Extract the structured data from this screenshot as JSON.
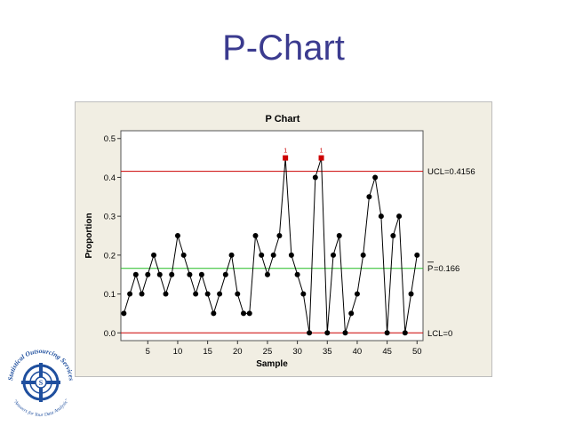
{
  "slide": {
    "title": "P-Chart"
  },
  "chart_data": {
    "type": "line",
    "title": "P Chart",
    "xlabel": "Sample",
    "ylabel": "Proportion",
    "xlim": [
      0.5,
      51
    ],
    "ylim": [
      -0.02,
      0.52
    ],
    "x_ticks": [
      5,
      10,
      15,
      20,
      25,
      30,
      35,
      40,
      45,
      50
    ],
    "y_ticks": [
      0.0,
      0.1,
      0.2,
      0.3,
      0.4,
      0.5
    ],
    "y_tick_labels": [
      "0.0",
      "0.1",
      "0.2",
      "0.3",
      "0.4",
      "0.5"
    ],
    "x": [
      1,
      2,
      3,
      4,
      5,
      6,
      7,
      8,
      9,
      10,
      11,
      12,
      13,
      14,
      15,
      16,
      17,
      18,
      19,
      20,
      21,
      22,
      23,
      24,
      25,
      26,
      27,
      28,
      29,
      30,
      31,
      32,
      33,
      34,
      35,
      36,
      37,
      38,
      39,
      40,
      41,
      42,
      43,
      44,
      45,
      46,
      47,
      48,
      49,
      50
    ],
    "values": [
      0.05,
      0.1,
      0.15,
      0.1,
      0.15,
      0.2,
      0.15,
      0.1,
      0.15,
      0.25,
      0.2,
      0.15,
      0.1,
      0.15,
      0.1,
      0.05,
      0.1,
      0.15,
      0.2,
      0.1,
      0.05,
      0.05,
      0.25,
      0.2,
      0.15,
      0.2,
      0.25,
      0.45,
      0.2,
      0.15,
      0.1,
      0.0,
      0.4,
      0.45,
      0.0,
      0.2,
      0.25,
      0.0,
      0.05,
      0.1,
      0.2,
      0.35,
      0.4,
      0.3,
      0.0,
      0.25,
      0.3,
      0.0,
      0.1,
      0.2
    ],
    "out_of_control": [
      28,
      34
    ],
    "out_of_control_label": "1",
    "control_lines": [
      {
        "name": "UCL",
        "value": 0.4156,
        "label": "UCL=0.4156",
        "color": "#cc0000"
      },
      {
        "name": "center",
        "value": 0.166,
        "label_bar": "P",
        "label_rest": "=0.166",
        "color": "#22bb22"
      },
      {
        "name": "LCL",
        "value": 0.0,
        "label": "LCL=0",
        "color": "#cc0000"
      }
    ],
    "colors": {
      "line": "#000000",
      "point": "#000000",
      "flag": "#cc0000"
    },
    "grid": false
  },
  "logo": {
    "top_text": "Statistical Outsourcing Services",
    "bottom_text": "\"Answers for Your Data Analysis\"",
    "center_text": "S",
    "color": "#1f4f9e"
  }
}
